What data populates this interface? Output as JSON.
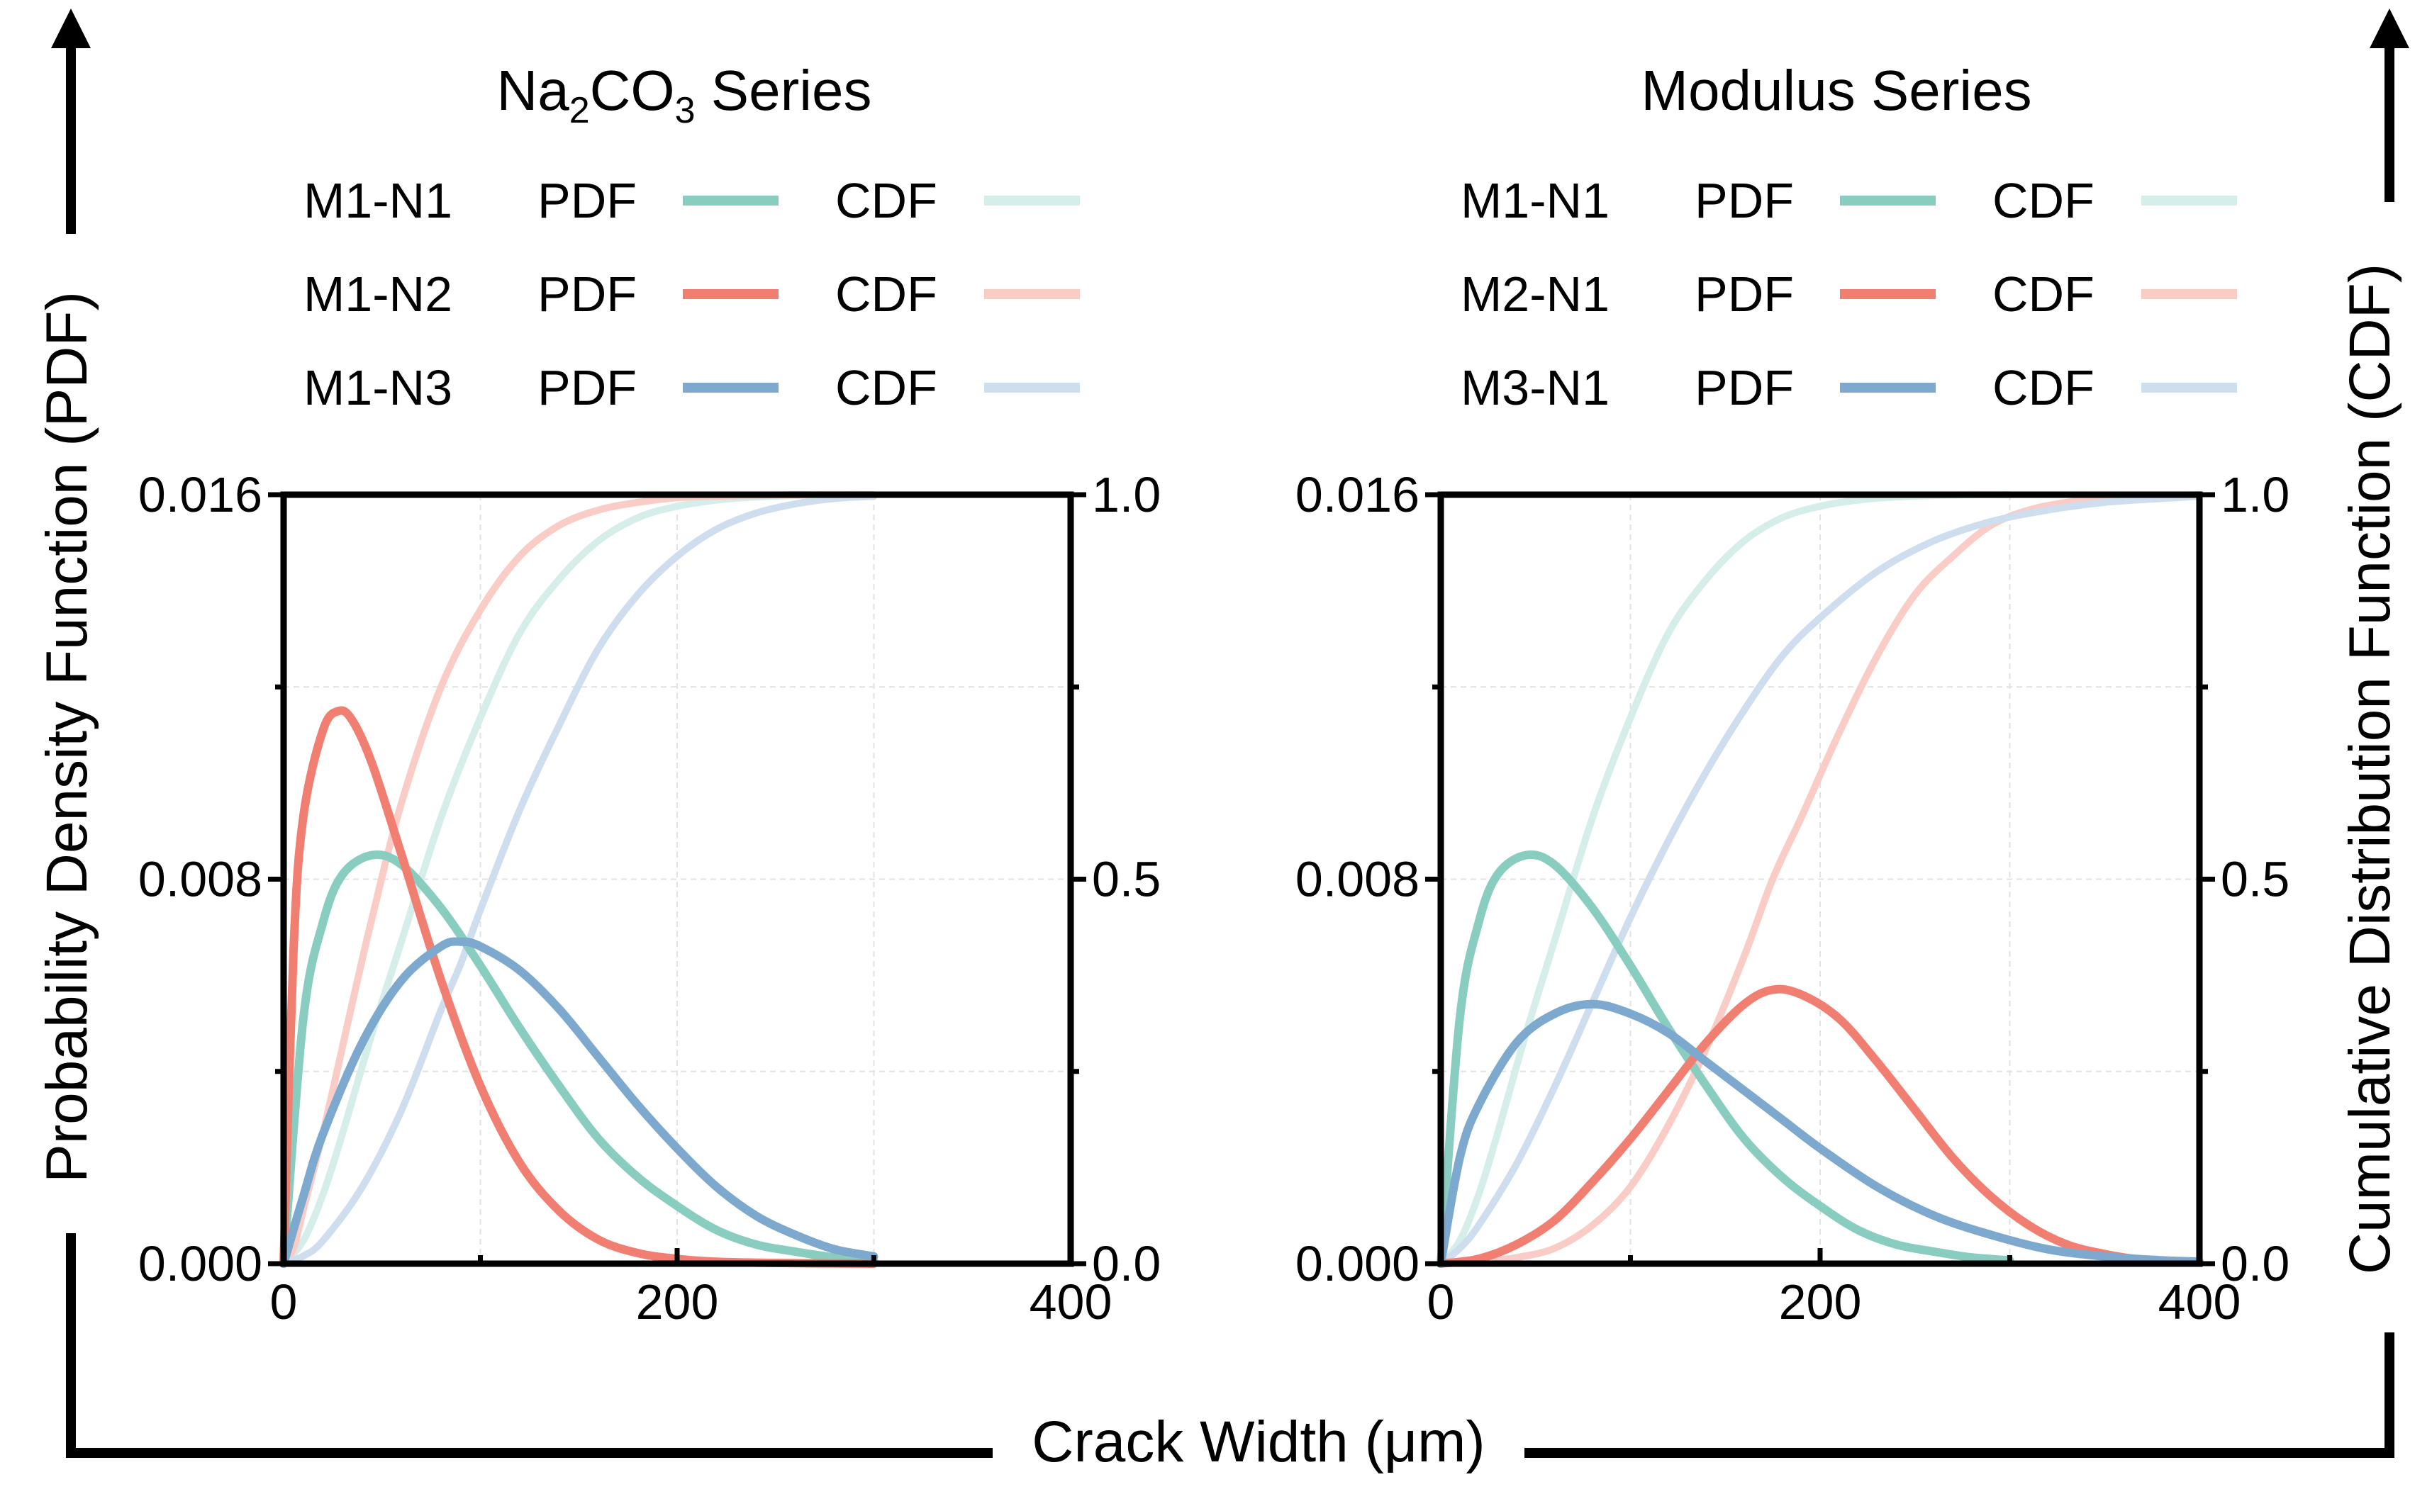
{
  "figure": {
    "x_axis_title": "Crack Width (μm)",
    "left_axis_title": "Probability Density Function (PDF)",
    "right_axis_title": "Cumulative Distribution Function (CDF)"
  },
  "legend_labels": {
    "pdf": "PDF",
    "cdf": "CDF"
  },
  "colors": {
    "teal": "#89cdc0",
    "red": "#f07f72",
    "blue": "#7ea9cf",
    "teal_light": "#d5eee9",
    "red_light": "#f9ccc6",
    "blue_light": "#cfdeee",
    "grid": "#e2e2e2",
    "axis": "#000000"
  },
  "chart_data": [
    {
      "type": "line",
      "title_parts": {
        "a": "Na",
        "a_sub": "2",
        "b": "CO",
        "b_sub": "3",
        "c": " Series"
      },
      "title": "Na2CO3 Series",
      "xlabel": "Crack Width (μm)",
      "ylabel_left": "Probability Density Function (PDF)",
      "ylabel_right": "Cumulative Distribution Function (CDF)",
      "xlim": [
        0,
        400
      ],
      "ylim_pdf": [
        0,
        0.016
      ],
      "ylim_cdf": [
        0,
        1.0
      ],
      "x_ticks": [
        "0",
        "200",
        "400"
      ],
      "y_ticks_left": [
        "0.000",
        "0.008",
        "0.016"
      ],
      "y_ticks_right": [
        "0.0",
        "0.5",
        "1.0"
      ],
      "grid": true,
      "series": [
        {
          "name": "M1-N1",
          "color_key": "teal",
          "x": [
            0,
            10,
            20,
            30,
            45,
            60,
            80,
            100,
            120,
            140,
            160,
            180,
            200,
            220,
            240,
            260,
            280,
            300
          ],
          "pdf": [
            0,
            0.0051,
            0.0071,
            0.0081,
            0.0085,
            0.0083,
            0.0074,
            0.0062,
            0.0049,
            0.0037,
            0.0026,
            0.0018,
            0.0012,
            0.0007,
            0.0004,
            0.00025,
            0.00013,
            7e-05
          ],
          "cdf": [
            0,
            0.03,
            0.09,
            0.17,
            0.3,
            0.42,
            0.58,
            0.71,
            0.82,
            0.89,
            0.94,
            0.97,
            0.985,
            0.993,
            0.997,
            0.999,
            1.0,
            1.0
          ]
        },
        {
          "name": "M1-N2",
          "color_key": "red",
          "x": [
            0,
            5,
            10,
            20,
            28,
            35,
            45,
            60,
            80,
            100,
            120,
            140,
            160,
            180,
            200,
            220,
            240,
            260,
            300
          ],
          "pdf": [
            0,
            0.0065,
            0.0093,
            0.0111,
            0.0115,
            0.0113,
            0.0104,
            0.0085,
            0.0059,
            0.0037,
            0.0021,
            0.0011,
            0.0005,
            0.00022,
            0.0001,
            4e-05,
            2e-05,
            1e-05,
            0
          ],
          "cdf": [
            0,
            0.02,
            0.07,
            0.17,
            0.26,
            0.34,
            0.45,
            0.6,
            0.75,
            0.85,
            0.92,
            0.96,
            0.98,
            0.99,
            0.996,
            0.998,
            0.999,
            1.0,
            1.0
          ]
        },
        {
          "name": "M1-N3",
          "color_key": "blue",
          "x": [
            0,
            10,
            20,
            40,
            60,
            80,
            90,
            100,
            120,
            140,
            160,
            180,
            200,
            220,
            240,
            260,
            280,
            300
          ],
          "pdf": [
            0,
            0.0014,
            0.0027,
            0.0046,
            0.0059,
            0.0066,
            0.0067,
            0.0066,
            0.0061,
            0.0053,
            0.0043,
            0.0033,
            0.0024,
            0.0016,
            0.001,
            0.0006,
            0.0003,
            0.00015
          ],
          "cdf": [
            0,
            0.01,
            0.03,
            0.1,
            0.2,
            0.33,
            0.39,
            0.46,
            0.59,
            0.7,
            0.8,
            0.87,
            0.92,
            0.955,
            0.976,
            0.988,
            0.995,
            0.998
          ]
        }
      ],
      "legend": [
        "M1-N1",
        "M1-N2",
        "M1-N3"
      ]
    },
    {
      "type": "line",
      "title": "Modulus Series",
      "xlabel": "Crack Width (μm)",
      "ylabel_left": "Probability Density Function (PDF)",
      "ylabel_right": "Cumulative Distribution Function (CDF)",
      "xlim": [
        0,
        400
      ],
      "ylim_pdf": [
        0,
        0.016
      ],
      "ylim_cdf": [
        0,
        1.0
      ],
      "x_ticks": [
        "0",
        "200",
        "400"
      ],
      "y_ticks_left": [
        "0.000",
        "0.008",
        "0.016"
      ],
      "y_ticks_right": [
        "0.0",
        "0.5",
        "1.0"
      ],
      "grid": true,
      "series": [
        {
          "name": "M1-N1",
          "color_key": "teal",
          "x": [
            0,
            10,
            20,
            30,
            45,
            60,
            80,
            100,
            120,
            140,
            160,
            180,
            200,
            220,
            240,
            260,
            280,
            300
          ],
          "pdf": [
            0,
            0.0051,
            0.0071,
            0.0081,
            0.0085,
            0.0083,
            0.0074,
            0.0062,
            0.0049,
            0.0037,
            0.0026,
            0.0018,
            0.0012,
            0.0007,
            0.0004,
            0.00025,
            0.00013,
            7e-05
          ],
          "cdf": [
            0,
            0.03,
            0.09,
            0.17,
            0.3,
            0.42,
            0.58,
            0.71,
            0.82,
            0.89,
            0.94,
            0.97,
            0.985,
            0.993,
            0.997,
            0.999,
            1.0,
            1.0
          ]
        },
        {
          "name": "M2-N1",
          "color_key": "red",
          "x": [
            0,
            20,
            40,
            60,
            80,
            100,
            120,
            140,
            160,
            175,
            190,
            210,
            230,
            250,
            270,
            290,
            310,
            330,
            350,
            370,
            400
          ],
          "pdf": [
            0,
            0.0001,
            0.0004,
            0.0009,
            0.0017,
            0.0026,
            0.0036,
            0.0046,
            0.0054,
            0.0057,
            0.0056,
            0.0051,
            0.0042,
            0.0032,
            0.0022,
            0.0014,
            0.0008,
            0.0004,
            0.0002,
            8e-05,
            2e-05
          ],
          "cdf": [
            0,
            0.002,
            0.008,
            0.02,
            0.05,
            0.1,
            0.18,
            0.28,
            0.4,
            0.5,
            0.58,
            0.69,
            0.79,
            0.87,
            0.92,
            0.96,
            0.98,
            0.99,
            0.995,
            0.998,
            1.0
          ]
        },
        {
          "name": "M3-N1",
          "color_key": "blue",
          "x": [
            0,
            10,
            20,
            40,
            60,
            80,
            100,
            120,
            140,
            160,
            180,
            200,
            230,
            260,
            290,
            320,
            350,
            380,
            400
          ],
          "pdf": [
            0,
            0.0022,
            0.0033,
            0.0046,
            0.0052,
            0.0054,
            0.0052,
            0.0048,
            0.0042,
            0.0036,
            0.003,
            0.0024,
            0.0016,
            0.001,
            0.0006,
            0.0003,
            0.00015,
            7e-05,
            4e-05
          ],
          "cdf": [
            0,
            0.02,
            0.05,
            0.13,
            0.23,
            0.34,
            0.45,
            0.55,
            0.64,
            0.72,
            0.79,
            0.84,
            0.9,
            0.94,
            0.965,
            0.98,
            0.99,
            0.995,
            0.998
          ]
        }
      ],
      "legend": [
        "M1-N1",
        "M2-N1",
        "M3-N1"
      ]
    }
  ]
}
